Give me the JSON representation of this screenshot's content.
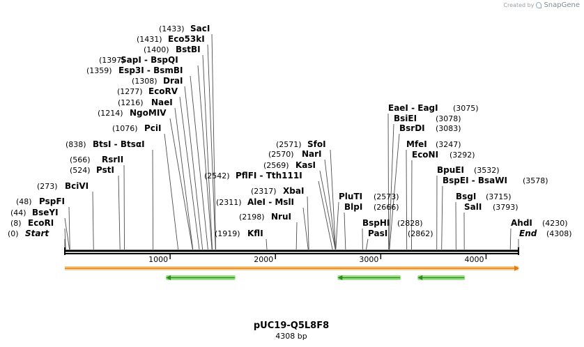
{
  "header": {
    "created_by": "Created by",
    "brand": "SnapGene"
  },
  "map": {
    "name": "pUC19-Q5L8F8",
    "length_text": "4308 bp",
    "total_bp": 4308,
    "scale_ticks": [
      {
        "value": 1000,
        "label": "1000"
      },
      {
        "value": 2000,
        "label": "2000"
      },
      {
        "value": 3000,
        "label": "3000"
      },
      {
        "value": 4000,
        "label": "4000"
      }
    ],
    "colors": {
      "backbone": "#000000",
      "vector_feature_fill": "#f6cf8f",
      "vector_feature_edge": "#e07b1a",
      "gene_fill": "#9be28a",
      "gene_arrow": "#2e8b1e"
    },
    "features": [
      {
        "name": "plasmid-span",
        "start": 0,
        "end": 4308,
        "direction": "forward",
        "kind": "vector"
      },
      {
        "name": "gene-1",
        "start": 960,
        "end": 1620,
        "direction": "reverse",
        "kind": "gene"
      },
      {
        "name": "gene-2",
        "start": 2590,
        "end": 3190,
        "direction": "reverse",
        "kind": "gene"
      },
      {
        "name": "gene-3",
        "start": 3350,
        "end": 3800,
        "direction": "reverse",
        "kind": "gene"
      }
    ]
  },
  "sites": [
    {
      "pos": "(0)",
      "name": "Start",
      "second": "",
      "bp": 0,
      "style": "italic"
    },
    {
      "pos": "(8)",
      "name": "EcoRI",
      "second": "",
      "bp": 8
    },
    {
      "pos": "(44)",
      "name": "BseYI",
      "second": "",
      "bp": 44
    },
    {
      "pos": "(48)",
      "name": "PspFI",
      "second": "",
      "bp": 48
    },
    {
      "pos": "(273)",
      "name": "BciVI",
      "second": "",
      "bp": 273
    },
    {
      "pos": "(524)",
      "name": "PstI",
      "second": "",
      "bp": 524
    },
    {
      "pos": "(566)",
      "name": "RsrII",
      "second": "",
      "bp": 566
    },
    {
      "pos": "(838)",
      "name": "BtsI",
      "second": "BtsαI",
      "bp": 838
    },
    {
      "pos": "(1076)",
      "name": "PciI",
      "second": "",
      "bp": 1076
    },
    {
      "pos": "(1214)",
      "name": "NgoMIV",
      "second": "",
      "bp": 1214
    },
    {
      "pos": "(1216)",
      "name": "NaeI",
      "second": "",
      "bp": 1216
    },
    {
      "pos": "(1277)",
      "name": "EcoRV",
      "second": "",
      "bp": 1277
    },
    {
      "pos": "(1308)",
      "name": "DraI",
      "second": "",
      "bp": 1308
    },
    {
      "pos": "(1359)",
      "name": "Esp3I",
      "second": "BsmBI",
      "bp": 1359
    },
    {
      "pos": "(1397)",
      "name": "SapI",
      "second": "BspQI",
      "bp": 1397
    },
    {
      "pos": "(1400)",
      "name": "BstBI",
      "second": "",
      "bp": 1400
    },
    {
      "pos": "(1431)",
      "name": "Eco53kI",
      "second": "",
      "bp": 1431
    },
    {
      "pos": "(1433)",
      "name": "SacI",
      "second": "",
      "bp": 1433
    },
    {
      "pos": "(1919)",
      "name": "KflI",
      "second": "",
      "bp": 1919
    },
    {
      "pos": "(2198)",
      "name": "NruI",
      "second": "",
      "bp": 2198
    },
    {
      "pos": "(2311)",
      "name": "AleI",
      "second": "MslI",
      "bp": 2311
    },
    {
      "pos": "(2317)",
      "name": "XbaI",
      "second": "",
      "bp": 2317
    },
    {
      "pos": "(2542)",
      "name": "PflFI",
      "second": "Tth111I",
      "bp": 2542
    },
    {
      "pos": "(2569)",
      "name": "KasI",
      "second": "",
      "bp": 2569
    },
    {
      "pos": "(2570)",
      "name": "NarI",
      "second": "",
      "bp": 2570
    },
    {
      "pos": "(2571)",
      "name": "SfoI",
      "second": "",
      "bp": 2571
    },
    {
      "pos": "(2573)",
      "name": "PluTI",
      "second": "",
      "bp": 2573
    },
    {
      "pos": "(2666)",
      "name": "BlpI",
      "second": "",
      "bp": 2666
    },
    {
      "pos": "(2828)",
      "name": "BspHI",
      "second": "",
      "bp": 2828
    },
    {
      "pos": "(2862)",
      "name": "PasI",
      "second": "",
      "bp": 2862
    },
    {
      "pos": "(3075)",
      "name": "EaeI",
      "second": "EagI",
      "bp": 3075
    },
    {
      "pos": "(3078)",
      "name": "BsiEI",
      "second": "",
      "bp": 3078
    },
    {
      "pos": "(3083)",
      "name": "BsrDI",
      "second": "",
      "bp": 3083
    },
    {
      "pos": "(3247)",
      "name": "MfeI",
      "second": "",
      "bp": 3247
    },
    {
      "pos": "(3292)",
      "name": "EcoNI",
      "second": "",
      "bp": 3292
    },
    {
      "pos": "(3532)",
      "name": "BpuEI",
      "second": "",
      "bp": 3532
    },
    {
      "pos": "(3578)",
      "name": "BspEI",
      "second": "BsaWI",
      "bp": 3578
    },
    {
      "pos": "(3715)",
      "name": "BsgI",
      "second": "",
      "bp": 3715
    },
    {
      "pos": "(3793)",
      "name": "SalI",
      "second": "",
      "bp": 3793
    },
    {
      "pos": "(4230)",
      "name": "AhdI",
      "second": "",
      "bp": 4230
    },
    {
      "pos": "(4308)",
      "name": "End",
      "second": "",
      "bp": 4308,
      "style": "italic"
    }
  ]
}
